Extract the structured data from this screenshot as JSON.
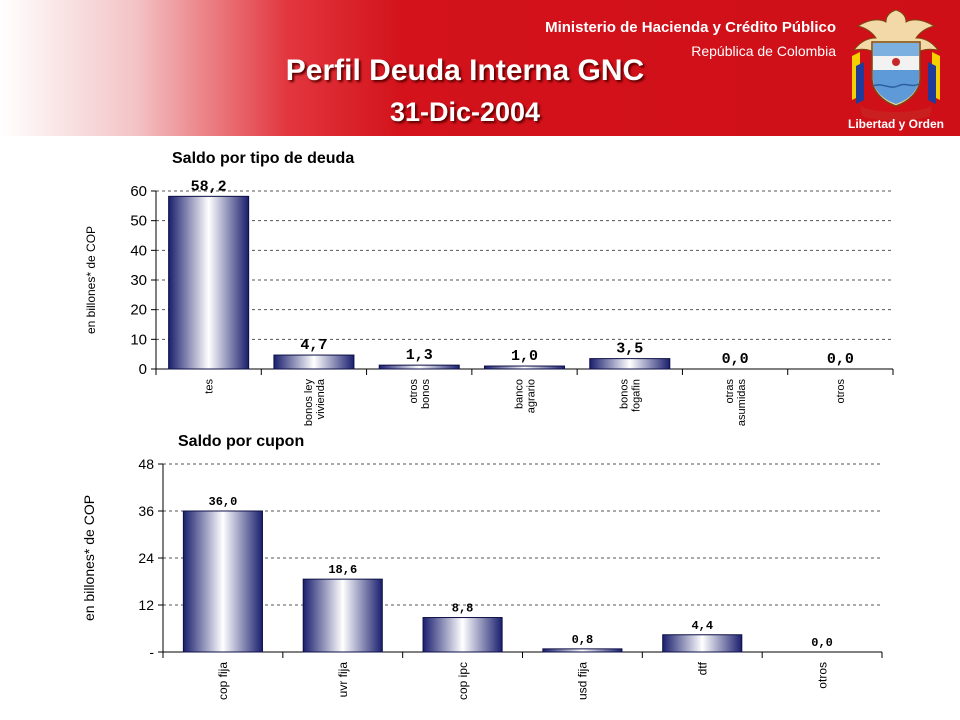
{
  "header": {
    "ministry": "Ministerio de Hacienda y Crédito Público",
    "republic": "República de Colombia",
    "title": "Perfil Deuda Interna GNC",
    "date": "31-Dic-2004",
    "emblem_motto": "Libertad y Orden",
    "colors": {
      "banner": "#cf0f18",
      "title_shadow": "#5a0000"
    }
  },
  "chart_data": [
    {
      "type": "bar",
      "title": "Saldo por tipo de deuda",
      "ylabel": "en billones* de COP",
      "xlabel": "",
      "categories": [
        "tes",
        "bonos ley vivienda",
        "otros bonos",
        "banco agrario",
        "bonos fogafin",
        "otras asumidas",
        "otros"
      ],
      "category_lines": [
        [
          "tes"
        ],
        [
          "bonos ley",
          "vivienda"
        ],
        [
          "otros",
          "bonos"
        ],
        [
          "banco",
          "agrario"
        ],
        [
          "bonos",
          "fogafin"
        ],
        [
          "otras",
          "asumidas"
        ],
        [
          "otros"
        ]
      ],
      "values": [
        58.2,
        4.7,
        1.3,
        1.0,
        3.5,
        0.0,
        0.0
      ],
      "value_labels": [
        "58,2",
        "4,7",
        "1,3",
        "1,0",
        "3,5",
        "0,0",
        "0,0"
      ],
      "ylim": [
        0,
        60
      ],
      "yticks": [
        0,
        10,
        20,
        30,
        40,
        50,
        60
      ],
      "ytick_labels": [
        "0",
        "10",
        "20",
        "30",
        "40",
        "50",
        "60"
      ],
      "grid": "horizontal dashed",
      "colors": {
        "bar_edge": "#1a1f6e",
        "bar_center": "#ffffff"
      }
    },
    {
      "type": "bar",
      "title": "Saldo por cupon",
      "ylabel": "en billones* de COP",
      "xlabel": "",
      "categories": [
        "cop fija",
        "uvr fija",
        "cop ipc",
        "usd fija",
        "dtf",
        "otros"
      ],
      "category_lines": [
        [
          "cop fija"
        ],
        [
          "uvr fija"
        ],
        [
          "cop ipc"
        ],
        [
          "usd fija"
        ],
        [
          "dtf"
        ],
        [
          "otros"
        ]
      ],
      "values": [
        36.0,
        18.6,
        8.8,
        0.8,
        4.4,
        0.0
      ],
      "value_labels": [
        "36,0",
        "18,6",
        "8,8",
        "0,8",
        "4,4",
        "0,0"
      ],
      "ylim": [
        0,
        48
      ],
      "yticks": [
        0,
        12,
        24,
        36,
        48
      ],
      "ytick_labels": [
        "-",
        "12",
        "24",
        "36",
        "48"
      ],
      "grid": "horizontal dashed",
      "colors": {
        "bar_edge": "#1a1f6e",
        "bar_center": "#ffffff"
      }
    }
  ]
}
